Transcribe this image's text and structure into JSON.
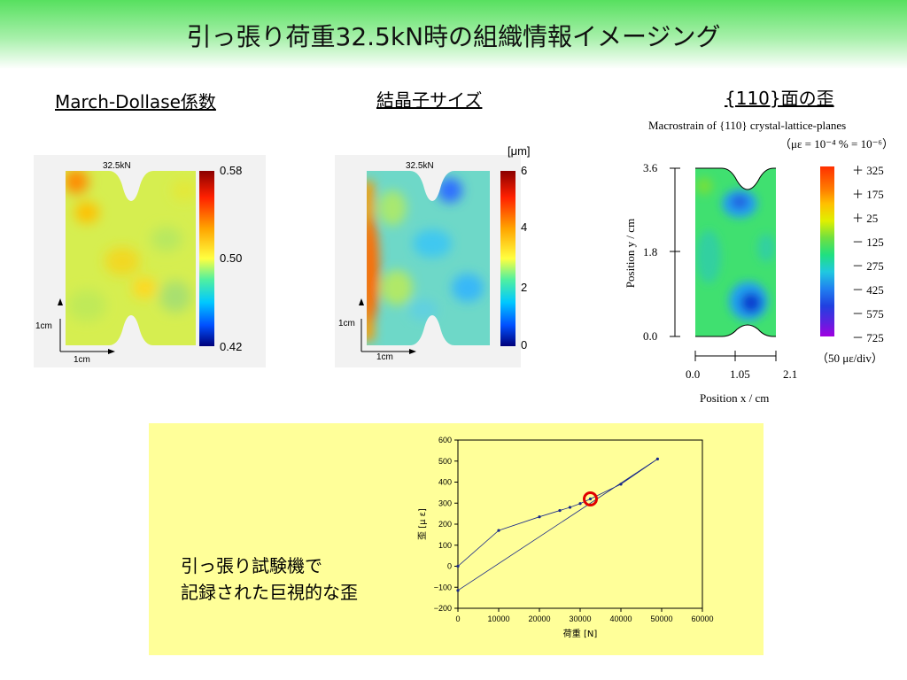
{
  "slide": {
    "title": "引っ張り荷重32.5kN時の組織情報イメージング"
  },
  "panels": {
    "march_dollase": {
      "heading": "March-Dollase係数",
      "sample_label": "32.5kN",
      "colorbar_ticks": [
        "0.58",
        "0.50",
        "0.42"
      ],
      "scale_labels": [
        "1cm",
        "1cm"
      ]
    },
    "crystal_size": {
      "heading": "結晶子サイズ",
      "sample_label": "32.5kN",
      "unit": "[μm]",
      "colorbar_ticks": [
        "6",
        "4",
        "2",
        "0"
      ],
      "scale_labels": [
        "1cm",
        "1cm"
      ]
    },
    "strain_110": {
      "heading": "{110}面の歪",
      "caption_line1": "Macrostrain of {110} crystal-lattice-planes",
      "caption_line2": "（με = 10⁻⁴ % = 10⁻⁶）",
      "y_ticks": [
        "3.6",
        "1.8",
        "0.0"
      ],
      "y_label": "Position y / cm",
      "x_ticks": [
        "0.0",
        "1.05",
        "2.1"
      ],
      "x_label": "Position x / cm",
      "legend_levels": [
        "＋ 325",
        "＋ 175",
        "＋ 25",
        "－ 125",
        "－ 275",
        "－ 425",
        "－ 575",
        "－ 725"
      ],
      "legend_note": "（50 με/div）"
    }
  },
  "note": {
    "line1": "引っ張り試験機で",
    "line2": "記録された巨視的な歪"
  },
  "colors": {
    "title_band": "#57e05f",
    "note_box": "#ffff99",
    "series_line": "#1a2a8a",
    "highlight_circle": "#e00000"
  },
  "chart_data": {
    "type": "line",
    "xlabel": "荷重 [N]",
    "ylabel": "歪 [μ ε]",
    "xlim": [
      0,
      60000
    ],
    "ylim": [
      -200,
      600
    ],
    "x_ticks": [
      0,
      10000,
      20000,
      30000,
      40000,
      50000,
      60000
    ],
    "y_ticks": [
      -200,
      -100,
      0,
      100,
      200,
      300,
      400,
      500,
      600
    ],
    "x_tick_labels": [
      "0",
      "10000",
      "20000",
      "30000",
      "40000",
      "50000",
      "60000"
    ],
    "y_tick_labels": [
      "−200",
      "−100",
      "0",
      "100",
      "200",
      "300",
      "400",
      "500",
      "600"
    ],
    "series": [
      {
        "x": [
          0,
          10000,
          20000,
          25000,
          27500,
          30000,
          32500,
          40000,
          49000,
          0
        ],
        "y": [
          0,
          170,
          235,
          265,
          280,
          298,
          320,
          390,
          510,
          -115
        ]
      }
    ],
    "highlight": {
      "x": 32500,
      "y": 320
    },
    "grid": false
  }
}
